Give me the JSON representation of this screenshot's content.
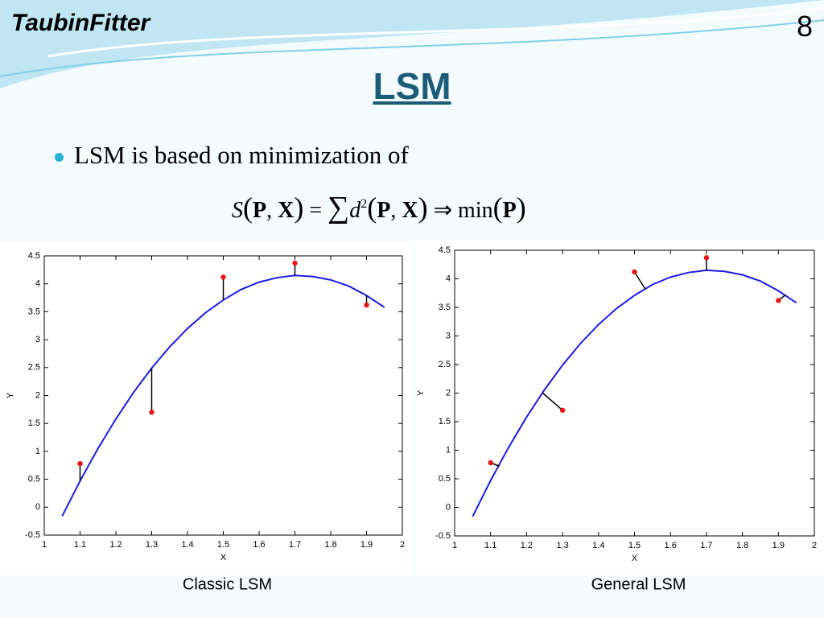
{
  "header": "TaubinFitter",
  "page_number": "8",
  "title": "LSM",
  "bullet": "LSM is based on minimization of",
  "formula": [
    "S",
    "(",
    "P",
    ", ",
    "X",
    ")",
    " = ",
    "∑",
    "d",
    "2",
    "(",
    "P",
    ", ",
    "X",
    ")",
    " ⇒ min",
    "(",
    "P",
    ")"
  ],
  "chart_data": [
    {
      "type": "scatter",
      "caption": "Classic LSM",
      "x_label": "X",
      "y_label": "Y",
      "xlim": [
        1,
        2
      ],
      "xticks": [
        1,
        1.1,
        1.2,
        1.3,
        1.4,
        1.5,
        1.6,
        1.7,
        1.8,
        1.9,
        2
      ],
      "ylim": [
        -0.5,
        4.5
      ],
      "yticks": [
        -0.5,
        0,
        0.5,
        1,
        1.5,
        2,
        2.5,
        3,
        3.5,
        4,
        4.5
      ],
      "points": {
        "color": "#e8141a",
        "x": [
          1.1,
          1.3,
          1.5,
          1.7,
          1.9
        ],
        "y": [
          0.78,
          1.7,
          4.12,
          4.37,
          3.62
        ]
      },
      "curve": {
        "color": "#1c1ce0",
        "x": [
          1.05,
          1.1,
          1.15,
          1.2,
          1.25,
          1.3,
          1.35,
          1.4,
          1.45,
          1.5,
          1.55,
          1.6,
          1.65,
          1.7,
          1.75,
          1.8,
          1.85,
          1.9,
          1.95
        ],
        "y": [
          -0.16,
          0.47,
          1.05,
          1.58,
          2.06,
          2.49,
          2.87,
          3.2,
          3.48,
          3.71,
          3.9,
          4.03,
          4.11,
          4.15,
          4.13,
          4.07,
          3.96,
          3.79,
          3.58
        ]
      },
      "residual_feet": {
        "color": "#000000",
        "x": [
          1.1,
          1.3,
          1.5,
          1.7,
          1.9
        ],
        "y": [
          0.47,
          2.49,
          3.71,
          4.15,
          3.79
        ]
      }
    },
    {
      "type": "scatter",
      "caption": "General LSM",
      "x_label": "X",
      "y_label": "Y",
      "xlim": [
        1,
        2
      ],
      "xticks": [
        1,
        1.1,
        1.2,
        1.3,
        1.4,
        1.5,
        1.6,
        1.7,
        1.8,
        1.9,
        2
      ],
      "ylim": [
        -0.5,
        4.5
      ],
      "yticks": [
        -0.5,
        0,
        0.5,
        1,
        1.5,
        2,
        2.5,
        3,
        3.5,
        4,
        4.5
      ],
      "points": {
        "color": "#e8141a",
        "x": [
          1.1,
          1.3,
          1.5,
          1.7,
          1.9
        ],
        "y": [
          0.78,
          1.7,
          4.12,
          4.37,
          3.62
        ]
      },
      "curve": {
        "color": "#1c1ce0",
        "x": [
          1.05,
          1.1,
          1.15,
          1.2,
          1.25,
          1.3,
          1.35,
          1.4,
          1.45,
          1.5,
          1.55,
          1.6,
          1.65,
          1.7,
          1.75,
          1.8,
          1.85,
          1.9,
          1.95
        ],
        "y": [
          -0.16,
          0.47,
          1.05,
          1.58,
          2.06,
          2.49,
          2.87,
          3.2,
          3.48,
          3.71,
          3.9,
          4.03,
          4.11,
          4.15,
          4.13,
          4.07,
          3.96,
          3.79,
          3.58
        ]
      },
      "residual_feet": {
        "color": "#000000",
        "x": [
          1.125,
          1.245,
          1.53,
          1.7,
          1.92
        ],
        "y": [
          0.72,
          2.0,
          3.82,
          4.15,
          3.72
        ]
      }
    }
  ]
}
